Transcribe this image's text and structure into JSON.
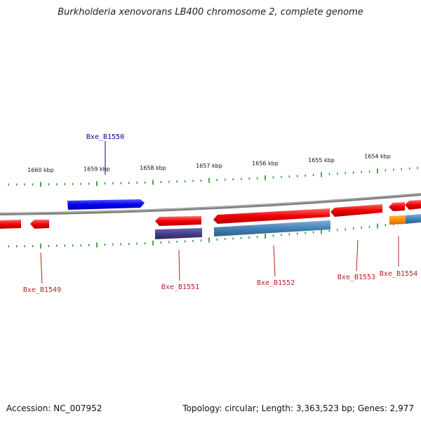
{
  "title": "Burkholderia xenovorans LB400 chromosome 2, complete genome",
  "footer": {
    "accession": "Accession: NC_007952",
    "stats": "Topology: circular; Length: 3,363,523 bp; Genes: 2,977"
  },
  "colors": {
    "forward_gene": "#0000ff",
    "reverse_gene": "#ff0000",
    "cds_reverse": "#4682b4",
    "cds_dark": "#483d8b",
    "cds_orange": "#ff8c00",
    "tick": "#228b22",
    "backbone": "#808080",
    "label_forward": "#00008b",
    "label_reverse": "#b22222"
  },
  "ticks": [
    {
      "label": "1660 kbp"
    },
    {
      "label": "1659 kbp"
    },
    {
      "label": "1658 kbp"
    },
    {
      "label": "1657 kbp"
    },
    {
      "label": "1656 kbp"
    },
    {
      "label": "1655 kbp"
    },
    {
      "label": "1654 kbp"
    }
  ],
  "genes": [
    {
      "name": "Bxe_B1549",
      "strand": "reverse"
    },
    {
      "name": "Bxe_B1550",
      "strand": "forward"
    },
    {
      "name": "Bxe_B1551",
      "strand": "reverse"
    },
    {
      "name": "Bxe_B1552",
      "strand": "reverse"
    },
    {
      "name": "Bxe_B1553",
      "strand": "reverse"
    },
    {
      "name": "Bxe_B1554",
      "strand": "reverse"
    }
  ]
}
